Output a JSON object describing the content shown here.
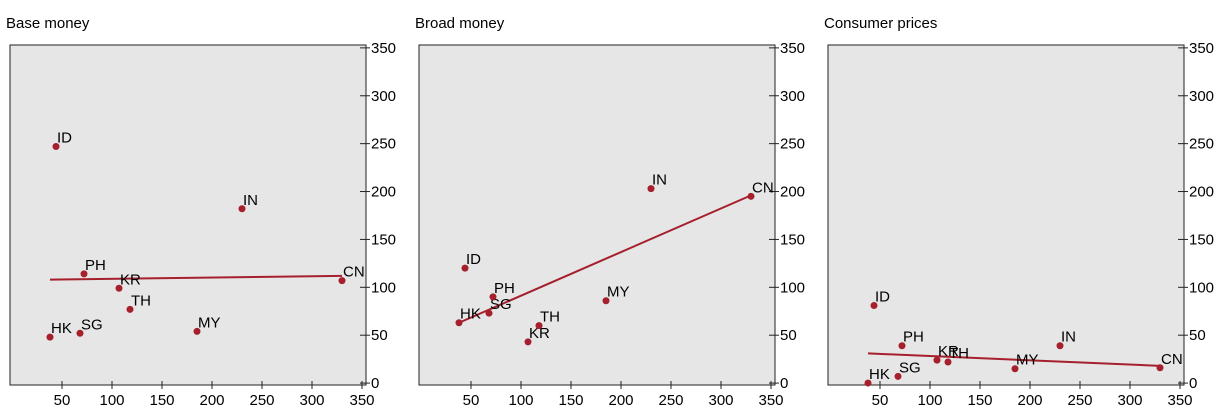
{
  "chart_data": [
    {
      "type": "scatter",
      "title": "Base money",
      "color": "#a51f2d",
      "labels": [
        "HK",
        "SG",
        "PH",
        "KR",
        "TH",
        "MY",
        "IN",
        "ID",
        "CN"
      ],
      "x": [
        38,
        68,
        72,
        107,
        118,
        185,
        230,
        44,
        330
      ],
      "values": [
        48,
        52,
        114,
        99,
        77,
        54,
        182,
        247,
        107
      ],
      "trend": {
        "x": [
          38,
          330
        ],
        "values": [
          108,
          112
        ]
      },
      "xlim": [
        -2,
        354
      ],
      "ylim": [
        -2,
        353
      ],
      "xticks": [
        50,
        100,
        150,
        200,
        250,
        300,
        350
      ],
      "yticks": [
        0,
        50,
        100,
        150,
        200,
        250,
        300,
        350
      ]
    },
    {
      "type": "scatter",
      "title": "Broad money",
      "color": "#a51f2d",
      "labels": [
        "HK",
        "SG",
        "PH",
        "KR",
        "TH",
        "MY",
        "IN",
        "ID",
        "CN"
      ],
      "x": [
        38,
        68,
        72,
        107,
        118,
        185,
        230,
        44,
        330
      ],
      "values": [
        63,
        73,
        90,
        43,
        60,
        86,
        203,
        120,
        195
      ],
      "trend": {
        "x": [
          38,
          330
        ],
        "values": [
          63,
          196
        ]
      },
      "xlim": [
        -2,
        354
      ],
      "ylim": [
        -2,
        353
      ],
      "xticks": [
        50,
        100,
        150,
        200,
        250,
        300,
        350
      ],
      "yticks": [
        0,
        50,
        100,
        150,
        200,
        250,
        300,
        350
      ]
    },
    {
      "type": "scatter",
      "title": "Consumer prices",
      "color": "#a51f2d",
      "labels": [
        "HK",
        "SG",
        "PH",
        "KR",
        "TH",
        "MY",
        "IN",
        "ID",
        "CN"
      ],
      "x": [
        38,
        68,
        72,
        107,
        118,
        185,
        230,
        44,
        330
      ],
      "values": [
        0,
        7,
        39,
        24,
        22,
        15,
        39,
        81,
        16
      ],
      "trend": {
        "x": [
          38,
          330
        ],
        "values": [
          31,
          18
        ]
      },
      "xlim": [
        -2,
        354
      ],
      "ylim": [
        -2,
        353
      ],
      "xticks": [
        50,
        100,
        150,
        200,
        250,
        300,
        350
      ],
      "yticks": [
        0,
        50,
        100,
        150,
        200,
        250,
        300,
        350
      ]
    }
  ]
}
